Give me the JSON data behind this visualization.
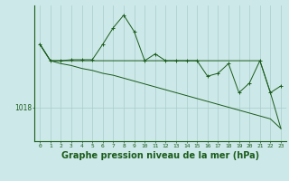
{
  "bg_color": "#cce8e8",
  "line_color": "#1a5c1a",
  "grid_color": "#aacccc",
  "xlabel": "Graphe pression niveau de la mer (hPa)",
  "xlabel_fontsize": 7.0,
  "ytick_label": "1018",
  "ytick_value": 1018,
  "ylim": [
    1014.5,
    1028.5
  ],
  "xlim": [
    -0.5,
    23.5
  ],
  "hours": [
    0,
    1,
    2,
    3,
    4,
    5,
    6,
    7,
    8,
    9,
    10,
    11,
    12,
    13,
    14,
    15,
    16,
    17,
    18,
    19,
    20,
    21,
    22,
    23
  ],
  "line1": [
    1024.5,
    1022.8,
    1022.8,
    1022.9,
    1022.9,
    1022.9,
    1024.5,
    1026.2,
    1027.5,
    1025.8,
    1022.8,
    1023.5,
    1022.8,
    1022.8,
    1022.8,
    1022.8,
    1021.2,
    1021.5,
    1022.5,
    1019.5,
    1020.5,
    1022.8,
    1019.5,
    1020.2
  ],
  "line2": [
    1024.5,
    1022.8,
    1022.8,
    1022.8,
    1022.8,
    1022.8,
    1022.8,
    1022.8,
    1022.8,
    1022.8,
    1022.8,
    1022.8,
    1022.8,
    1022.8,
    1022.8,
    1022.8,
    1022.8,
    1022.8,
    1022.8,
    1022.8,
    1022.8,
    1022.8,
    1019.5,
    1015.8
  ],
  "line3": [
    1024.5,
    1022.8,
    1022.5,
    1022.3,
    1022.0,
    1021.8,
    1021.5,
    1021.3,
    1021.0,
    1020.7,
    1020.4,
    1020.1,
    1019.8,
    1019.5,
    1019.2,
    1018.9,
    1018.6,
    1018.3,
    1018.0,
    1017.7,
    1017.4,
    1017.1,
    1016.8,
    1015.8
  ]
}
